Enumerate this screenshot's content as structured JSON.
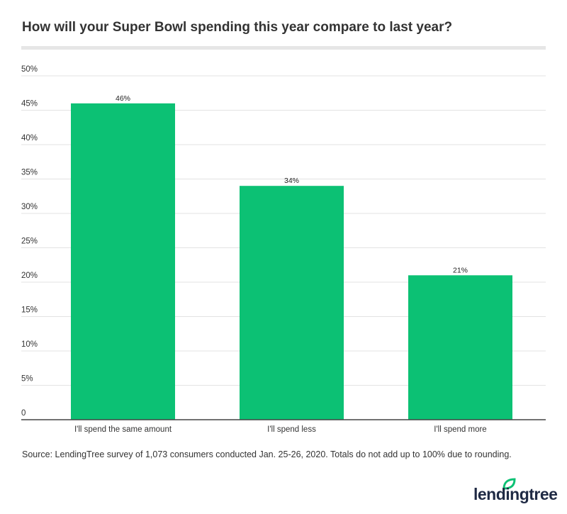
{
  "chart_data": {
    "type": "bar",
    "title": "How will your Super Bowl spending this year compare to last year?",
    "categories": [
      "I'll spend the same amount",
      "I'll spend less",
      "I'll spend more"
    ],
    "values": [
      46,
      34,
      21
    ],
    "data_labels": [
      "46%",
      "34%",
      "21%"
    ],
    "ylim": [
      0,
      50
    ],
    "yticks": [
      0,
      5,
      10,
      15,
      20,
      25,
      30,
      35,
      40,
      45,
      50
    ],
    "ytick_labels": [
      "0",
      "5%",
      "10%",
      "15%",
      "20%",
      "25%",
      "30%",
      "35%",
      "40%",
      "45%",
      "50%"
    ],
    "grid": true,
    "bar_color": "#0cc174",
    "xlabel": "",
    "ylabel": ""
  },
  "source": "Source: LendingTree survey of 1,073 consumers conducted Jan. 25-26, 2020. Totals do not add up to 100% due to rounding.",
  "logo": {
    "text": "lendingtree",
    "leaf_color": "#0cc174"
  }
}
